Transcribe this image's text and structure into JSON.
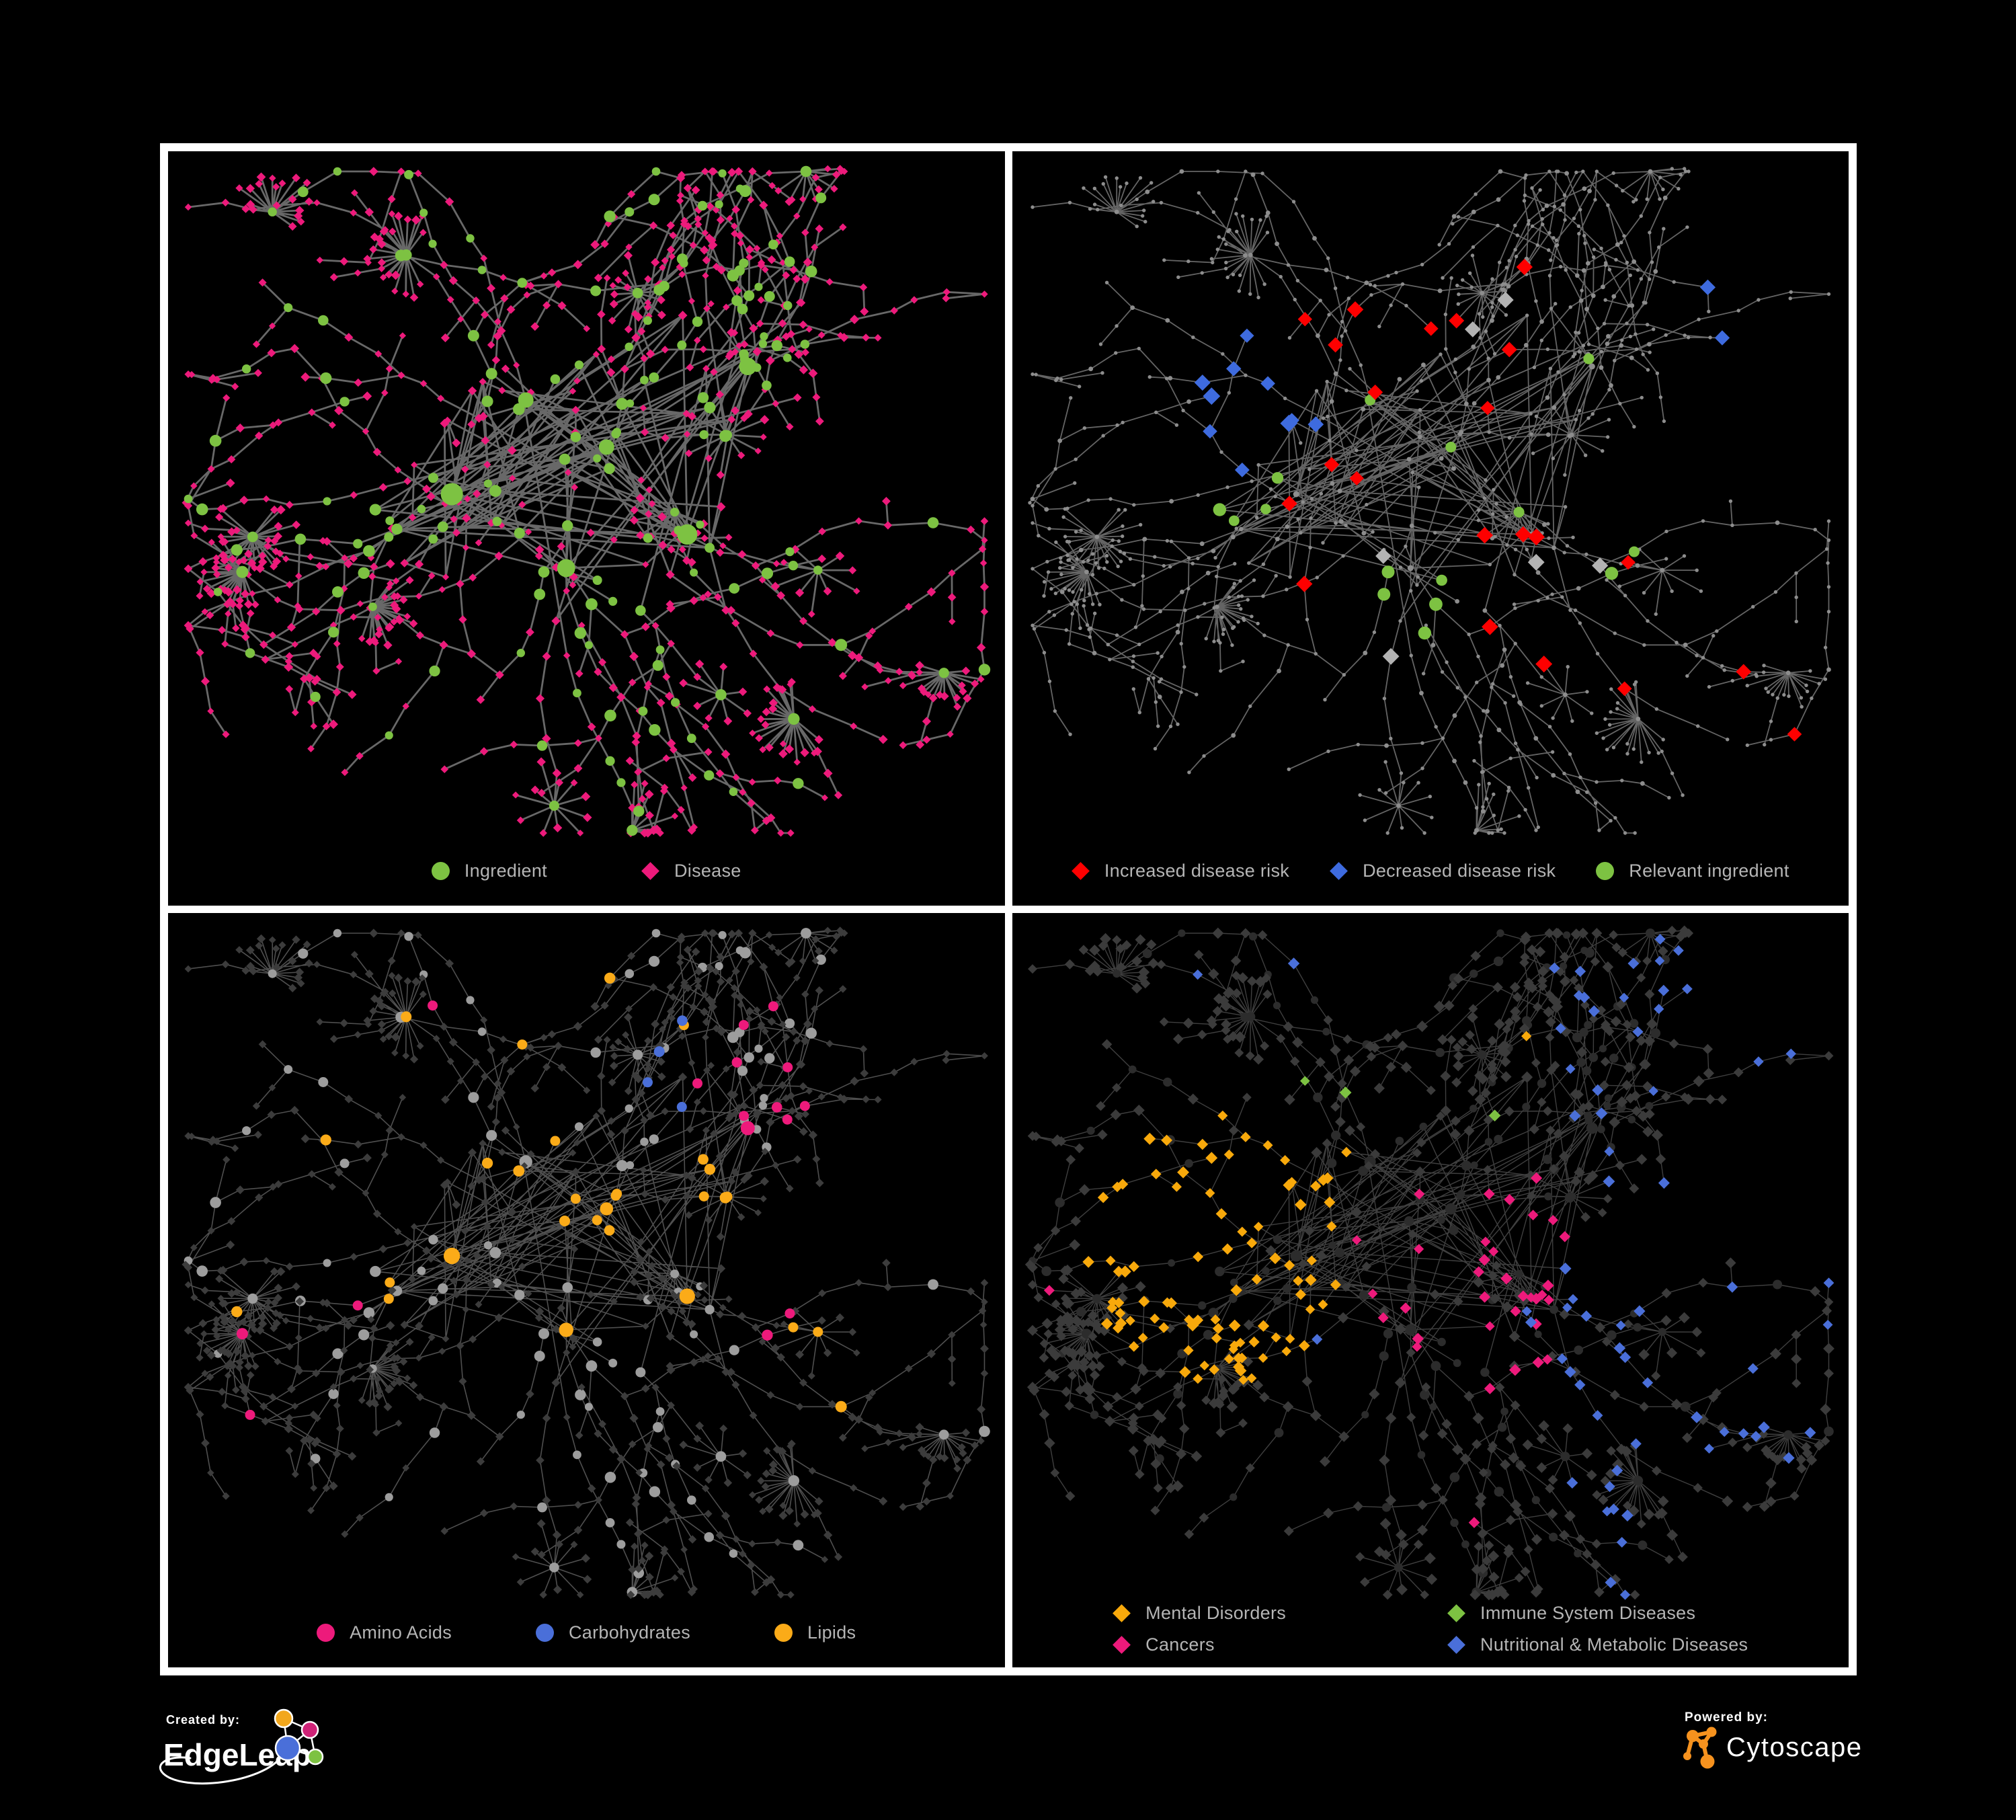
{
  "figure": {
    "background": "#000000",
    "frame_color": "#ffffff"
  },
  "panels": [
    {
      "name": "ingredient-disease-network",
      "legend": {
        "columns": 1,
        "item_gap": 140,
        "items": [
          {
            "shape": "circle",
            "color": "#7dc242",
            "label": "Ingredient"
          },
          {
            "shape": "diamond",
            "color": "#ed1a7b",
            "label": "Disease"
          }
        ]
      },
      "style": {
        "edge": {
          "color": "#6e6e6e",
          "width": 2.8,
          "opacity": 0.95
        },
        "circle_color": "#7dc242",
        "diamond_color": "#ed1a7b"
      }
    },
    {
      "name": "disease-risk-network",
      "legend": {
        "columns": 1,
        "item_gap": 60,
        "items": [
          {
            "shape": "diamond",
            "color": "#fe0000",
            "label": "Increased disease risk"
          },
          {
            "shape": "diamond",
            "color": "#3e6bdf",
            "label": "Decreased disease risk"
          },
          {
            "shape": "circle",
            "color": "#7dc242",
            "label": "Relevant ingredient"
          }
        ]
      },
      "style": {
        "edge": {
          "color": "#6f6f6f",
          "width": 1.8,
          "opacity": 0.9
        },
        "base_dot_color": "#8d8d8d",
        "highlights": {
          "red": "#fe0000",
          "blue": "#3e6bdf",
          "grayd": "#b3b3b3",
          "green": "#7dc242"
        }
      }
    },
    {
      "name": "ingredient-class-network",
      "legend": {
        "columns": 1,
        "item_gap": 125,
        "items": [
          {
            "shape": "circle",
            "color": "#ed1a7b",
            "label": "Amino Acids"
          },
          {
            "shape": "circle",
            "color": "#4a6fd9",
            "label": "Carbohydrates"
          },
          {
            "shape": "circle",
            "color": "#fbab18",
            "label": "Lipids"
          }
        ]
      },
      "style": {
        "edge": {
          "color": "#9e9e9e",
          "width": 1.6,
          "opacity": 0.5
        },
        "circle_color": "#9d9d9d",
        "diamond_color": "#3c3c3c",
        "highlights": {
          "pink": "#ed1a7b",
          "blue": "#4a6fd9",
          "orange": "#fbab18"
        }
      }
    },
    {
      "name": "disease-class-network",
      "legend": {
        "columns": 2,
        "item_gap": 240,
        "items": [
          {
            "shape": "diamond",
            "color": "#f8a90b",
            "label": "Mental Disorders"
          },
          {
            "shape": "diamond",
            "color": "#7dc242",
            "label": "Immune System Diseases"
          },
          {
            "shape": "diamond",
            "color": "#ed1a7b",
            "label": "Cancers"
          },
          {
            "shape": "diamond",
            "color": "#4a6fd9",
            "label": "Nutritional & Metabolic Diseases"
          }
        ]
      },
      "style": {
        "edge": {
          "color": "#969696",
          "width": 1.4,
          "opacity": 0.42
        },
        "circle_color": "#2c2c2c",
        "diamond_color": "#3b3b3b",
        "highlights": {
          "orange": "#f8a90b",
          "green": "#7dc242",
          "pink": "#ed1a7b",
          "blue": "#4a6fd9"
        }
      }
    }
  ],
  "network": {
    "seed": 1337,
    "hub_count": 6,
    "core_nodes": 85,
    "branches": 30,
    "star_bursts": 15,
    "twigs": 60
  },
  "footer": {
    "created_by_label": "Created by:",
    "created_by_name": "EdgeLeap",
    "powered_by_label": "Powered by:",
    "powered_by_name": "Cytoscape",
    "edgeleap_colors": {
      "orange": "#f2a71c",
      "pink": "#cf2277",
      "blue": "#4a6fd9",
      "green": "#7dc242"
    },
    "cytoscape_color": "#f6921e"
  },
  "legend_text_color": "#b5b5b5"
}
